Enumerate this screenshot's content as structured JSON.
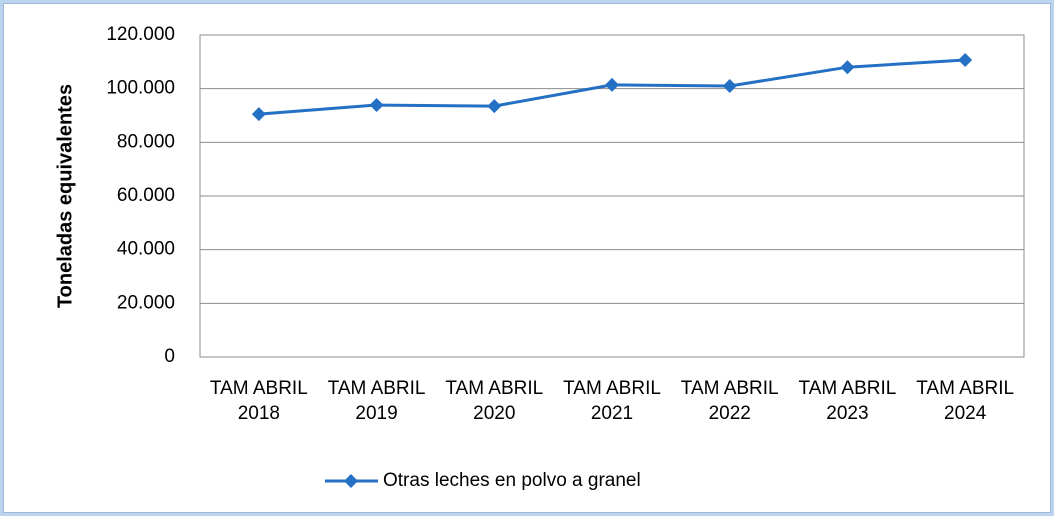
{
  "chart_data": {
    "type": "line",
    "ylabel": "Toneladas equivalentes",
    "categories": [
      "TAM ABRIL 2018",
      "TAM ABRIL 2019",
      "TAM ABRIL 2020",
      "TAM ABRIL 2021",
      "TAM ABRIL 2022",
      "TAM ABRIL 2023",
      "TAM ABRIL 2024"
    ],
    "series": [
      {
        "name": "Otras leches en polvo a granel",
        "color": "#2470c4",
        "values": [
          90500,
          93900,
          93500,
          101400,
          101000,
          108000,
          110700
        ]
      }
    ],
    "ylim": [
      0,
      120000
    ],
    "yticks": [
      0,
      {
        "value": 20000,
        "label": "20.000"
      },
      {
        "value": 40000,
        "label": "40.000"
      },
      {
        "value": 60000,
        "label": "60.000"
      },
      {
        "value": 80000,
        "label": "80.000"
      },
      {
        "value": 100000,
        "label": "100.000"
      },
      {
        "value": 120000,
        "label": "120.000"
      }
    ],
    "grid": true,
    "legend": "bottom"
  }
}
